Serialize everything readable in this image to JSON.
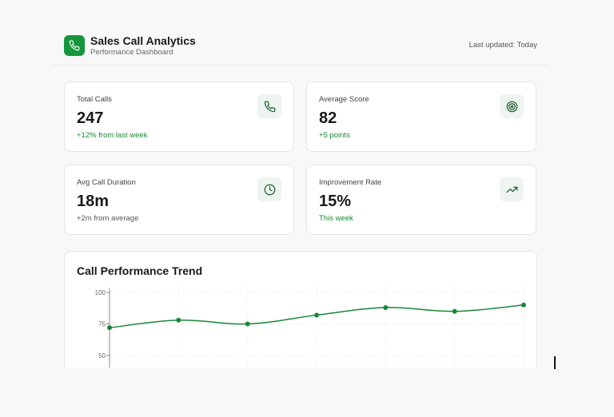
{
  "app": {
    "title": "Sales Call Analytics",
    "subtitle": "Performance Dashboard",
    "last_updated": "Last updated: Today",
    "brand_color": "#16963a",
    "logo_icon": "phone-icon"
  },
  "stats": [
    {
      "label": "Total Calls",
      "value": "247",
      "delta": "+12% from last week",
      "delta_color": "green",
      "icon": "phone-icon"
    },
    {
      "label": "Average Score",
      "value": "82",
      "delta": "+5 points",
      "delta_color": "green",
      "icon": "target-icon"
    },
    {
      "label": "Avg Call Duration",
      "value": "18m",
      "delta": "+2m from average",
      "delta_color": "gray",
      "icon": "clock-icon"
    },
    {
      "label": "Improvement Rate",
      "value": "15%",
      "delta": "This week",
      "delta_color": "green",
      "icon": "trending-up-icon"
    }
  ],
  "chart_data": {
    "type": "line",
    "title": "Call Performance Trend",
    "xlabel": "",
    "ylabel": "",
    "y_ticks": [
      100,
      75,
      50
    ],
    "ylim": [
      50,
      100
    ],
    "grid": true,
    "line_color": "#16863a",
    "series": [
      {
        "values": [
          72,
          78,
          75,
          82,
          88,
          85,
          90
        ]
      }
    ]
  }
}
